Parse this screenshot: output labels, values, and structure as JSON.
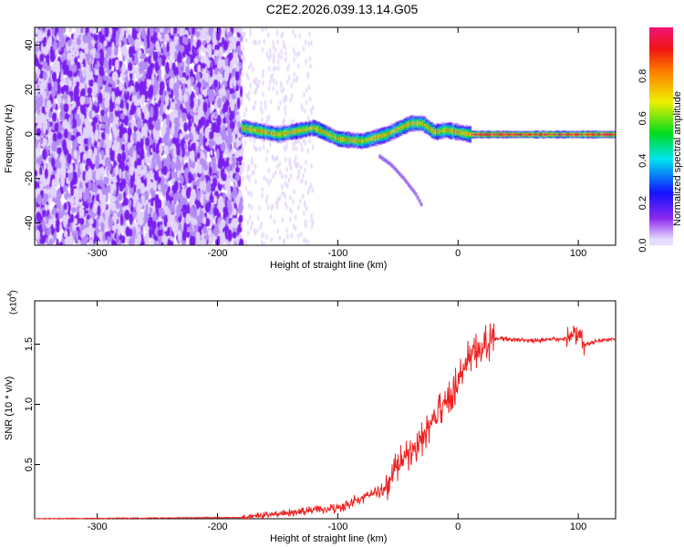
{
  "chart_data": [
    {
      "type": "heatmap",
      "title": "C2E2.2026.039.13.14.G05",
      "xlabel": "Height of straight line (km)",
      "ylabel": "Frequency (Hz)",
      "xlim": [
        -352,
        131
      ],
      "ylim": [
        -50,
        48
      ],
      "xticks": [
        -300,
        -200,
        -100,
        0,
        100
      ],
      "yticks": [
        -40,
        -20,
        0,
        20,
        40
      ],
      "colorbar": {
        "label": "Normalized spectral amplitude",
        "ticks": [
          "0.0",
          "0.2",
          "0.4",
          "0.6",
          "0.8"
        ],
        "range": [
          0,
          1
        ]
      },
      "noise_region_end_km": -180,
      "ridge": {
        "x": [
          -180,
          -150,
          -120,
          -100,
          -80,
          -60,
          -40,
          -30,
          -20,
          -10,
          0,
          10,
          130
        ],
        "freq": [
          3,
          0,
          3,
          -2,
          -3,
          0,
          5,
          5,
          1,
          2,
          1,
          0,
          0
        ]
      },
      "branch": {
        "x": [
          -65,
          -55,
          -45,
          -35,
          -30
        ],
        "freq": [
          -10,
          -14,
          -20,
          -27,
          -32
        ]
      }
    },
    {
      "type": "line",
      "xlabel": "Height of straight line (km)",
      "ylabel": "SNR (10 * v/v)",
      "yscale_label": "(x10",
      "yscale_exp": "4",
      "xlim": [
        -352,
        131
      ],
      "ylim": [
        0.05,
        1.86
      ],
      "xticks": [
        -300,
        -200,
        -100,
        0,
        100
      ],
      "yticks": [
        "0.5",
        "1.0",
        "1.5"
      ],
      "color": "#ee2222",
      "trend": {
        "x": [
          -352,
          -180,
          -150,
          -100,
          -60,
          -50,
          -30,
          -20,
          -10,
          0,
          10,
          30,
          60,
          95,
          100,
          105,
          131
        ],
        "y": [
          0.05,
          0.06,
          0.09,
          0.14,
          0.3,
          0.5,
          0.7,
          0.9,
          1.0,
          1.2,
          1.4,
          1.55,
          1.53,
          1.55,
          1.6,
          1.5,
          1.55
        ]
      }
    }
  ],
  "tick_labels": {
    "x": [
      "-300",
      "-200",
      "-100",
      "0",
      "100"
    ],
    "y_top": [
      "-40",
      "-20",
      "0",
      "20",
      "40"
    ]
  }
}
